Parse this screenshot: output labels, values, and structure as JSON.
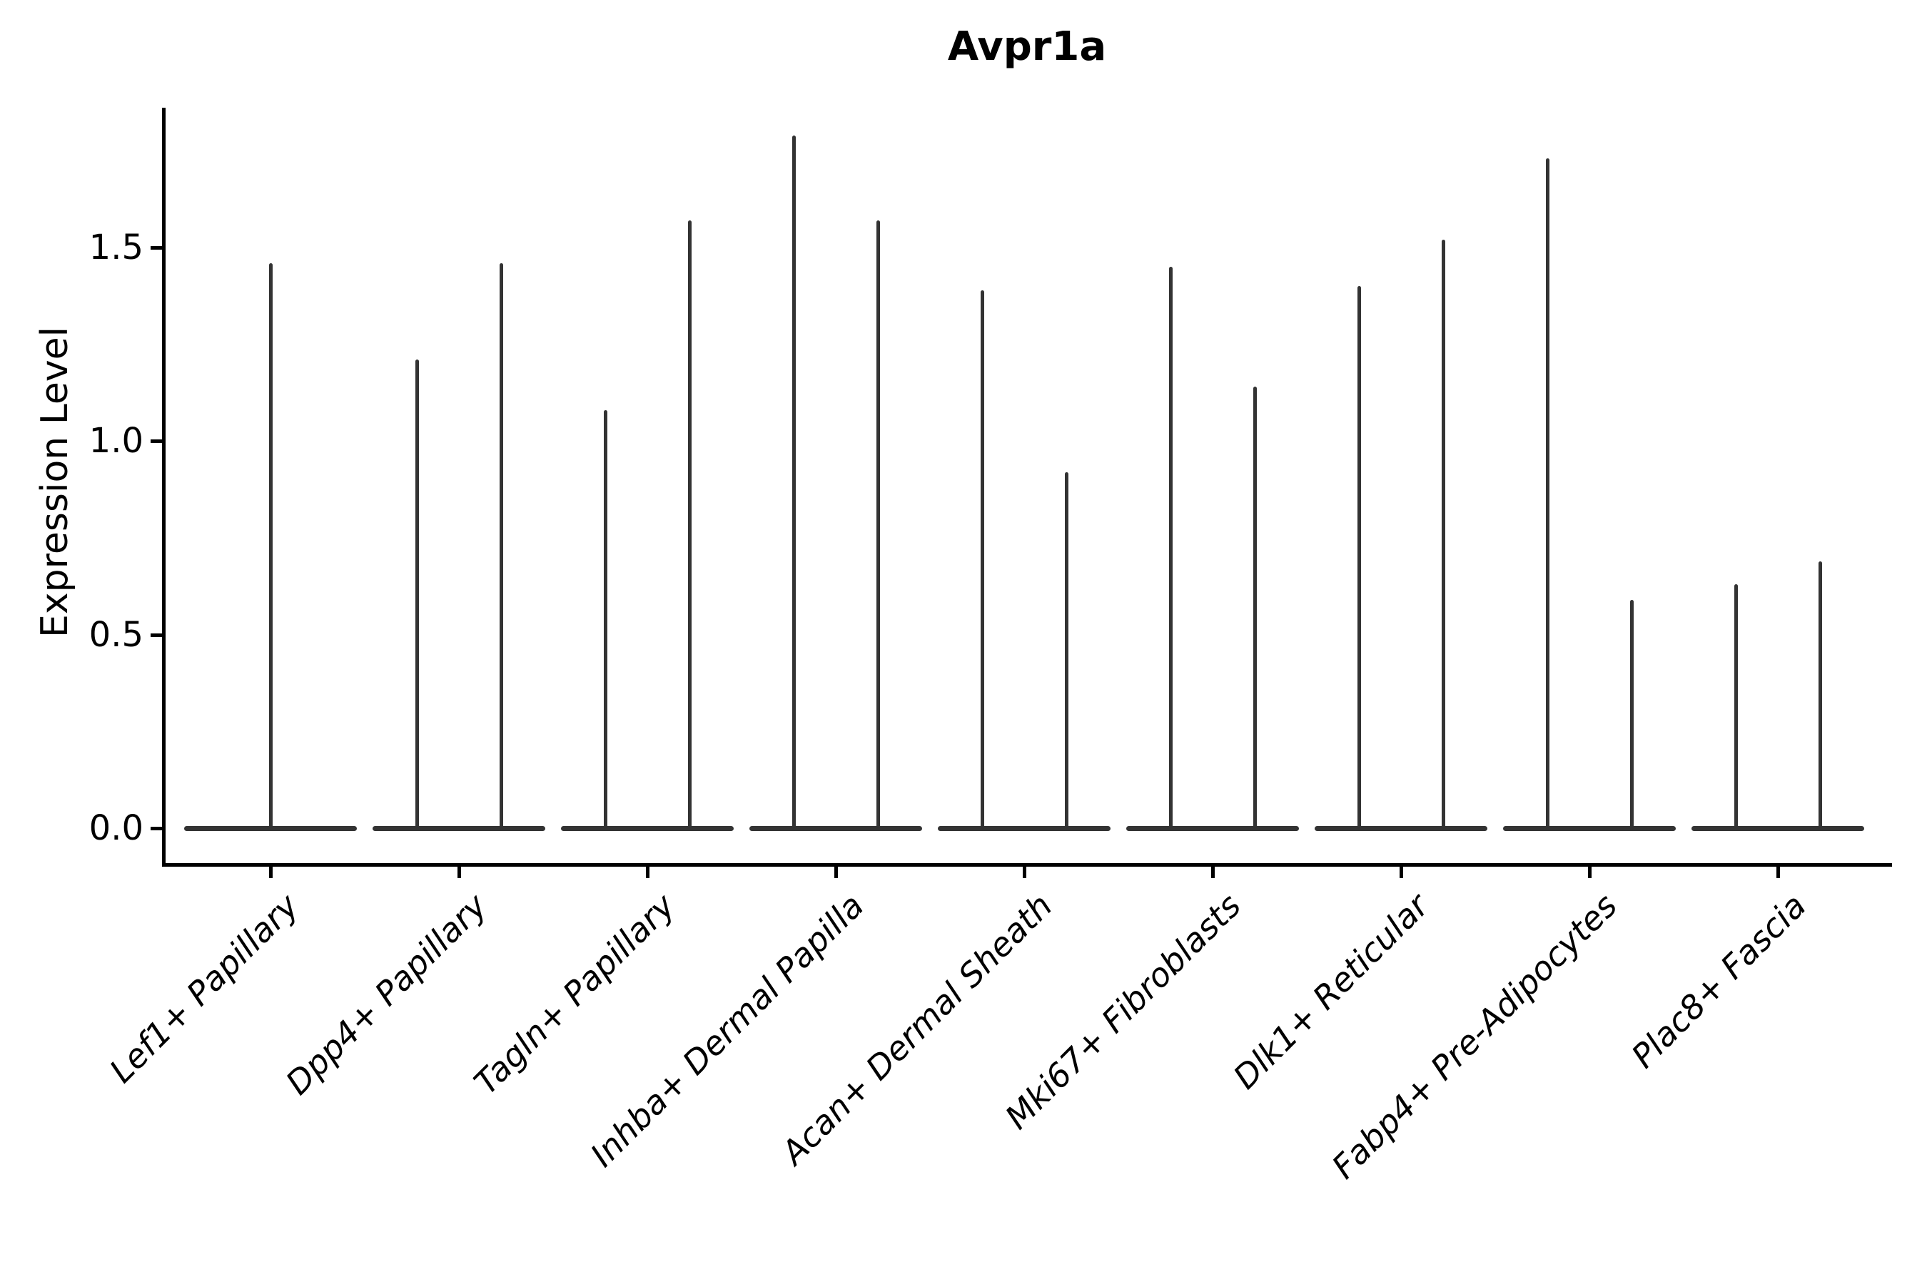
{
  "chart_data": {
    "type": "violin",
    "title": "Avpr1a",
    "ylabel": "Expression Level",
    "xlabel": "",
    "yticks": [
      "0.0",
      "0.5",
      "1.0",
      "1.5"
    ],
    "ytick_values": [
      0.0,
      0.5,
      1.0,
      1.5
    ],
    "ylim": [
      0,
      1.86
    ],
    "grid": false,
    "legend": "none",
    "line_color": "#333333",
    "spine_color": "#000000",
    "baseline_value": 0.0,
    "categories": [
      "Lef1+ Papillary",
      "Dpp4+ Papillary",
      "Tagln+ Papillary",
      "Inhba+ Dermal Papilla",
      "Acan+ Dermal Sheath",
      "Mki67+ Fibroblasts",
      "Dlk1+ Reticular",
      "Fabp4+ Pre-Adipocytes",
      "Plac8+ Fascia"
    ],
    "violins": [
      {
        "category": "Lef1+ Papillary",
        "spikes": [
          {
            "position": "center",
            "max": 1.46
          }
        ]
      },
      {
        "category": "Dpp4+ Papillary",
        "spikes": [
          {
            "position": "left",
            "max": 1.21
          },
          {
            "position": "right",
            "max": 1.46
          }
        ]
      },
      {
        "category": "Tagln+ Papillary",
        "spikes": [
          {
            "position": "left",
            "max": 1.08
          },
          {
            "position": "right",
            "max": 1.57
          }
        ]
      },
      {
        "category": "Inhba+ Dermal Papilla",
        "spikes": [
          {
            "position": "left",
            "max": 1.79
          },
          {
            "position": "right",
            "max": 1.57
          }
        ]
      },
      {
        "category": "Acan+ Dermal Sheath",
        "spikes": [
          {
            "position": "left",
            "max": 1.39
          },
          {
            "position": "right",
            "max": 0.92
          }
        ]
      },
      {
        "category": "Mki67+ Fibroblasts",
        "spikes": [
          {
            "position": "left",
            "max": 1.45
          },
          {
            "position": "right",
            "max": 1.14
          }
        ]
      },
      {
        "category": "Dlk1+ Reticular",
        "spikes": [
          {
            "position": "left",
            "max": 1.4
          },
          {
            "position": "right",
            "max": 1.52
          }
        ]
      },
      {
        "category": "Fabp4+ Pre-Adipocytes",
        "spikes": [
          {
            "position": "left",
            "max": 1.73
          },
          {
            "position": "right",
            "max": 0.59
          }
        ]
      },
      {
        "category": "Plac8+ Fascia",
        "spikes": [
          {
            "position": "left",
            "max": 0.63
          },
          {
            "position": "right",
            "max": 0.69
          }
        ]
      }
    ]
  }
}
